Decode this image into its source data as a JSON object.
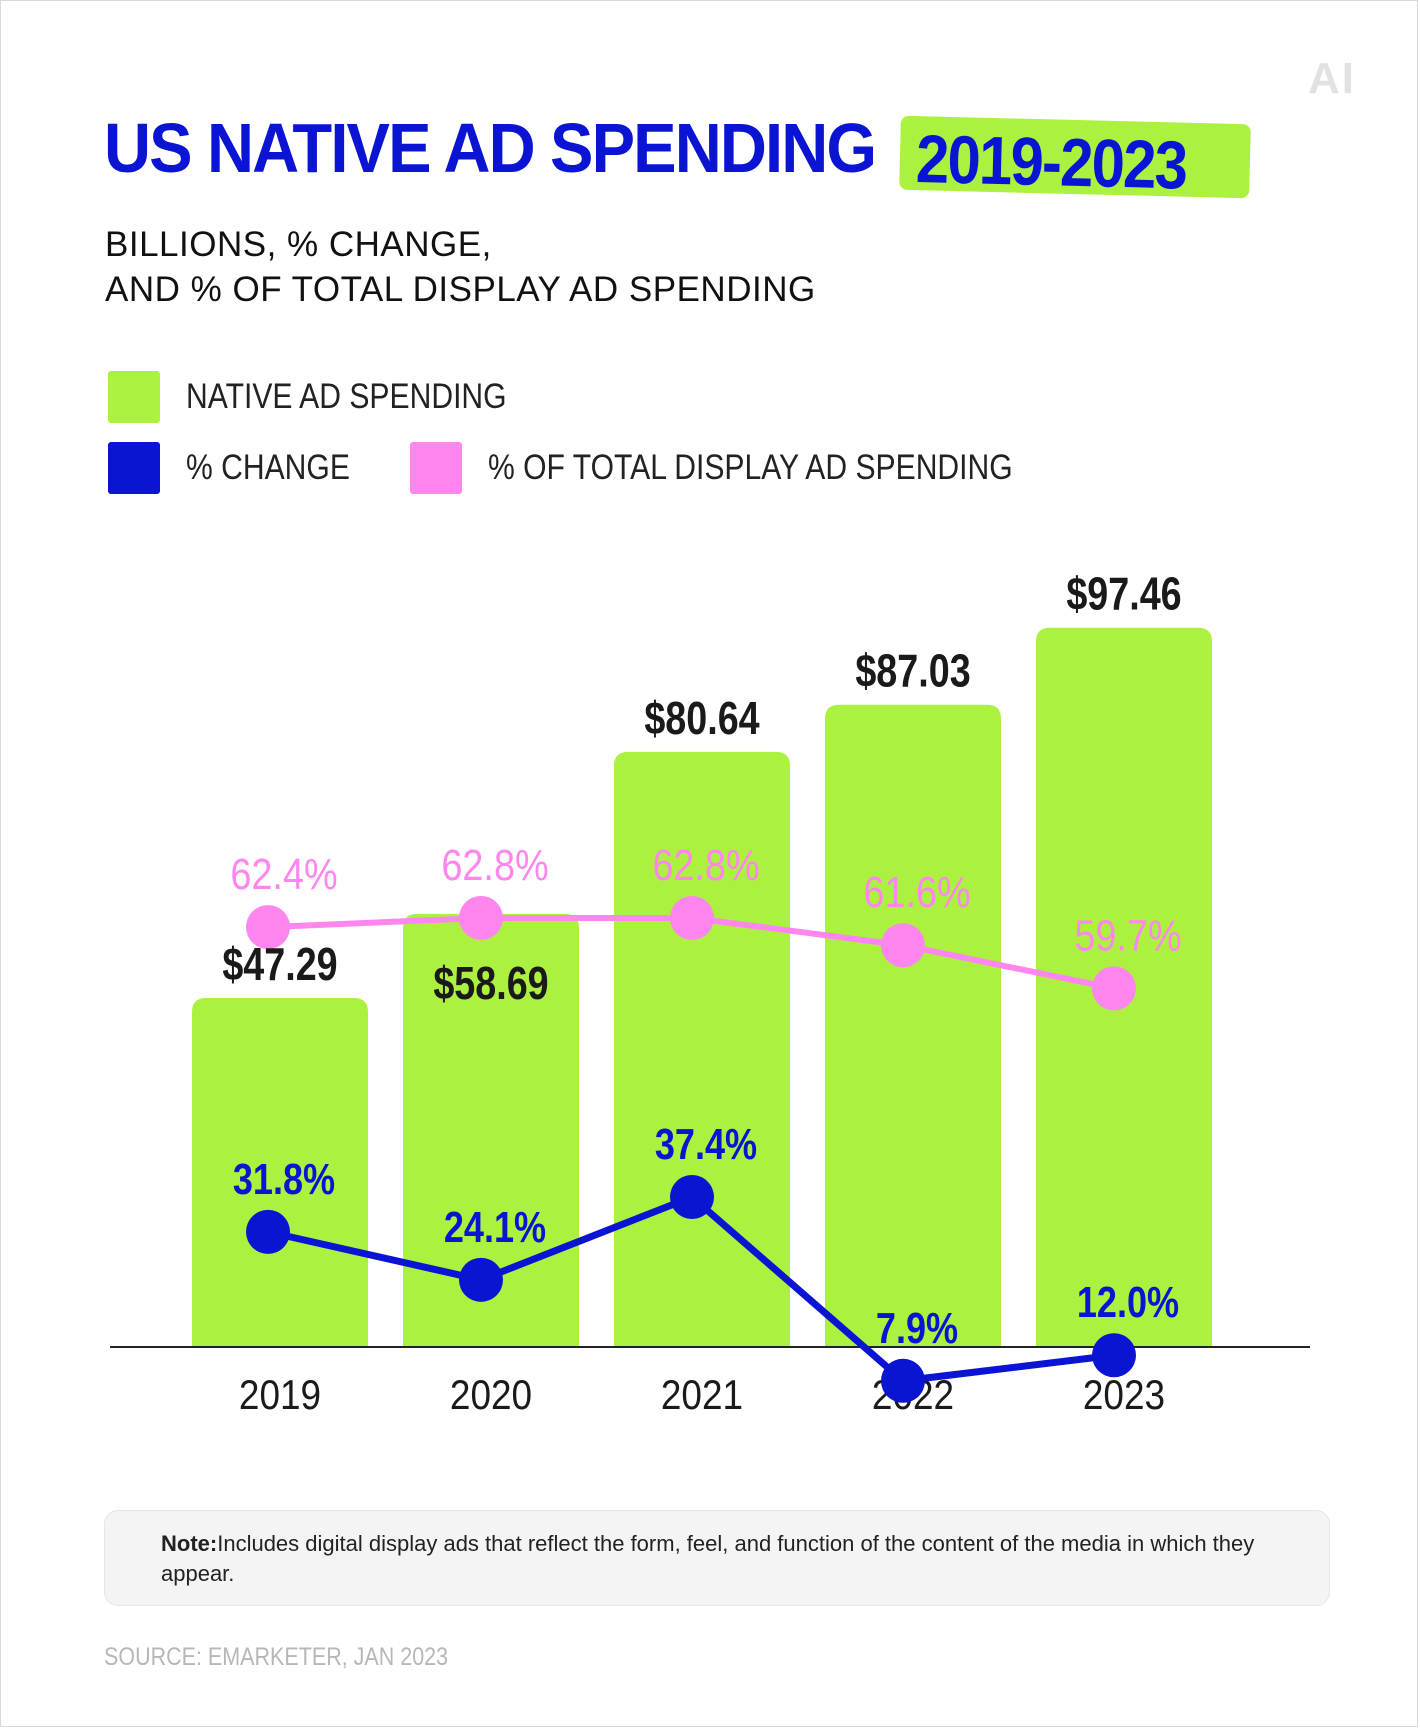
{
  "logo": "AI",
  "title": {
    "main": "US NATIVE AD SPENDING",
    "highlight": "2019-2023"
  },
  "subtitle": {
    "line1": "BILLIONS, % CHANGE,",
    "line2": "AND % OF TOTAL DISPLAY AD SPENDING"
  },
  "colors": {
    "bar": "#adf140",
    "change_line": "#0a14d2",
    "share_line": "#ff86ef",
    "title": "#0a14d2",
    "axis": "#222222"
  },
  "chart_data": {
    "type": "bar",
    "categories": [
      "2019",
      "2020",
      "2021",
      "2022",
      "2023"
    ],
    "series": [
      {
        "name": "NATIVE AD SPENDING",
        "type": "bar",
        "values": [
          47.29,
          58.69,
          80.64,
          87.03,
          97.46
        ],
        "labels": [
          "$47.29",
          "$58.69",
          "$80.64",
          "$87.03",
          "$97.46"
        ]
      },
      {
        "name": "% CHANGE",
        "type": "line",
        "values": [
          31.8,
          24.1,
          37.4,
          7.9,
          12.0
        ],
        "labels": [
          "31.8%",
          "24.1%",
          "37.4%",
          "7.9%",
          "12.0%"
        ]
      },
      {
        "name": "% OF TOTAL DISPLAY AD SPENDING",
        "type": "line",
        "values": [
          62.4,
          62.8,
          62.8,
          61.6,
          59.7
        ],
        "labels": [
          "62.4%",
          "62.8%",
          "62.8%",
          "61.6%",
          "59.7%"
        ]
      }
    ],
    "legend": "top-left",
    "grid": false
  },
  "note": {
    "label": "Note:",
    "text": "Includes digital display ads that reflect the form, feel, and function of the content of the media in which they appear."
  },
  "source": "SOURCE: EMARKETER, JAN 2023"
}
